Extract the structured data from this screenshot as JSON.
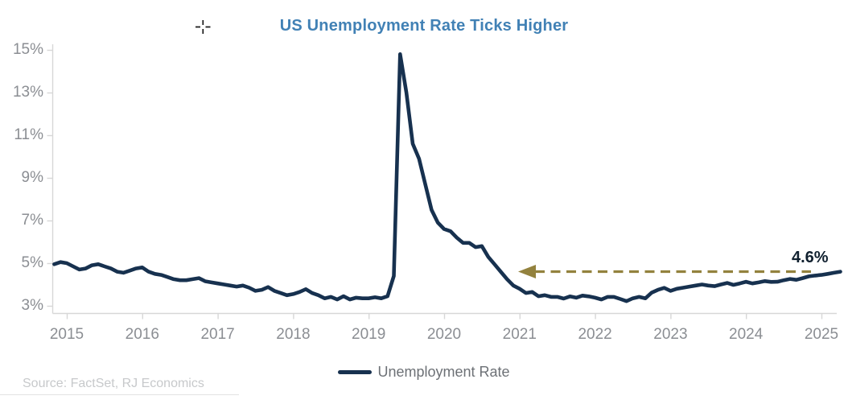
{
  "chart": {
    "title": "US Unemployment Rate Ticks Higher",
    "title_color": "#4181b5",
    "annotation": {
      "label": "4.6%",
      "label_color": "#10202f",
      "arrow_color": "#93823e"
    },
    "source": "Source: FactSet, RJ Economics",
    "colors": {
      "line": "#17314f",
      "axis": "#d7d7d7",
      "tick_label": "#8b8e93"
    },
    "cursor": "crosshair"
  },
  "chart_data": {
    "type": "line",
    "title": "US Unemployment Rate Ticks Higher",
    "xlabel": "",
    "ylabel": "",
    "y_unit": "%",
    "ylim": [
      3,
      15
    ],
    "grid": false,
    "legend_position": "bottom",
    "x_tick_labels": [
      "2015",
      "2016",
      "2017",
      "2018",
      "2019",
      "2020",
      "2021",
      "2022",
      "2023",
      "2024",
      "2025"
    ],
    "y_ticks": [
      3,
      5,
      7,
      9,
      11,
      13,
      15
    ],
    "y_tick_labels": [
      "3%",
      "5%",
      "7%",
      "9%",
      "11%",
      "13%",
      "15%"
    ],
    "series": [
      {
        "name": "Unemployment Rate",
        "color": "#17314f",
        "start": "2014-11",
        "frequency": "monthly",
        "values": [
          4.95,
          5.05,
          5.0,
          4.85,
          4.7,
          4.75,
          4.9,
          4.95,
          4.85,
          4.75,
          4.6,
          4.55,
          4.65,
          4.75,
          4.8,
          4.6,
          4.5,
          4.45,
          4.35,
          4.25,
          4.2,
          4.2,
          4.25,
          4.3,
          4.15,
          4.1,
          4.05,
          4.0,
          3.95,
          3.9,
          3.95,
          3.85,
          3.7,
          3.75,
          3.88,
          3.7,
          3.6,
          3.5,
          3.55,
          3.65,
          3.78,
          3.6,
          3.5,
          3.35,
          3.42,
          3.3,
          3.45,
          3.3,
          3.38,
          3.35,
          3.35,
          3.4,
          3.35,
          3.45,
          4.4,
          14.8,
          13.0,
          10.6,
          9.9,
          8.7,
          7.5,
          6.9,
          6.6,
          6.5,
          6.2,
          5.95,
          5.95,
          5.75,
          5.8,
          5.3,
          4.95,
          4.6,
          4.25,
          3.95,
          3.8,
          3.6,
          3.65,
          3.45,
          3.5,
          3.42,
          3.42,
          3.34,
          3.44,
          3.38,
          3.48,
          3.44,
          3.38,
          3.3,
          3.42,
          3.42,
          3.32,
          3.22,
          3.35,
          3.42,
          3.35,
          3.62,
          3.75,
          3.84,
          3.7,
          3.8,
          3.85,
          3.9,
          3.95,
          4.0,
          3.95,
          3.92,
          4.0,
          4.07,
          3.98,
          4.05,
          4.13,
          4.05,
          4.1,
          4.16,
          4.12,
          4.13,
          4.2,
          4.26,
          4.22,
          4.3,
          4.38,
          4.42,
          4.45,
          4.5,
          4.55,
          4.6
        ]
      }
    ],
    "annotations": [
      {
        "type": "dashed-arrow-left",
        "y": 4.6,
        "span_years": [
          2021,
          2025
        ],
        "label": "4.6%",
        "color": "#93823e"
      }
    ]
  }
}
